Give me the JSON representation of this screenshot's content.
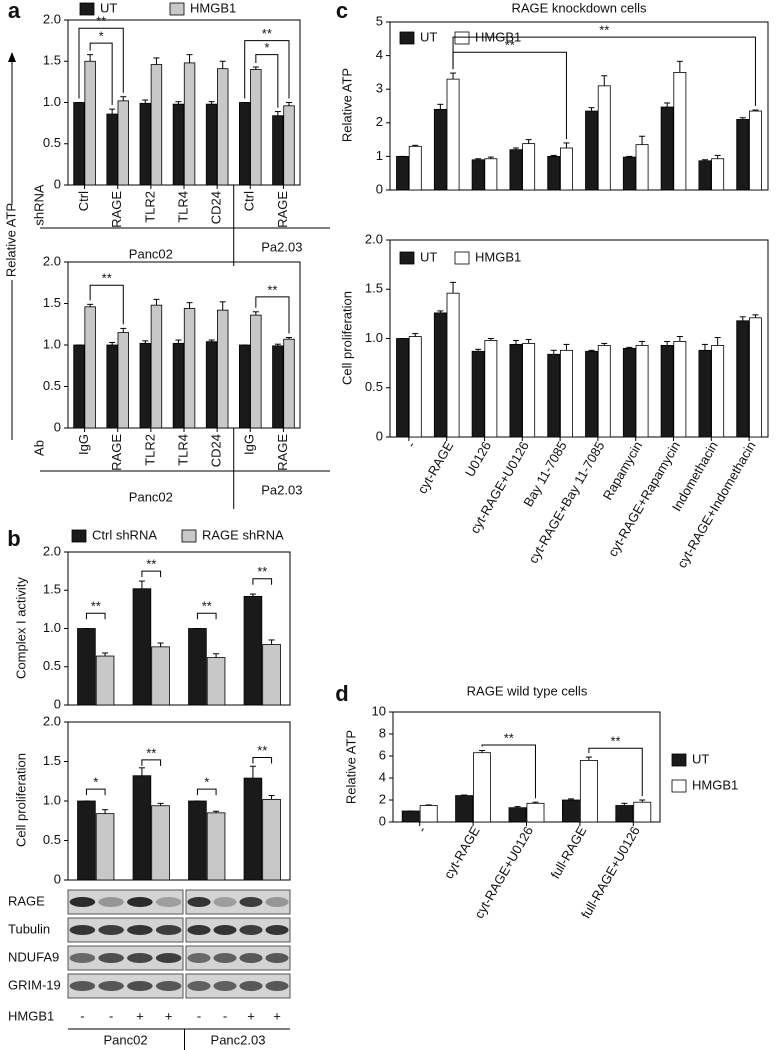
{
  "chart_data": [
    {
      "type": "bar",
      "panel": "a",
      "ylabel": "Relative ATP",
      "row_label": "shRNA",
      "groups": [
        "Panc02",
        "Pa2.03"
      ],
      "categories": [
        "Ctrl",
        "RAGE",
        "TLR2",
        "TLR4",
        "CD24",
        "Ctrl",
        "RAGE"
      ],
      "series": [
        {
          "name": "UT",
          "color": "#1a1a1a",
          "values": [
            1,
            0.86,
            0.99,
            0.98,
            0.98,
            1,
            0.84
          ],
          "errors": [
            0,
            0.06,
            0.04,
            0.03,
            0.03,
            0,
            0.05
          ]
        },
        {
          "name": "HMGB1",
          "color": "#c8c8c8",
          "values": [
            1.5,
            1.02,
            1.46,
            1.48,
            1.41,
            1.4,
            0.96
          ],
          "errors": [
            0.08,
            0.05,
            0.08,
            0.1,
            0.09,
            0.03,
            0.04
          ]
        }
      ],
      "ylim": [
        0,
        2
      ],
      "yticks": [
        0,
        0.5,
        {
          "value": 1,
          "label": "1.0"
        },
        1.5,
        {
          "value": 2,
          "label": "2.0"
        }
      ],
      "annotations": [
        "**",
        "*",
        "**",
        "*"
      ]
    },
    {
      "type": "bar",
      "row_label": "Ab",
      "groups": [
        "Panc02",
        "Pa2.03"
      ],
      "categories": [
        "IgG",
        "RAGE",
        "TLR2",
        "TLR4",
        "CD24",
        "IgG",
        "RAGE"
      ],
      "series": [
        {
          "color": "#1a1a1a",
          "values": [
            1,
            1,
            1.02,
            1.02,
            1.04,
            1,
            0.99
          ],
          "errors": [
            0,
            0.03,
            0.03,
            0.04,
            0.02,
            0,
            0.02
          ]
        },
        {
          "color": "#c8c8c8",
          "values": [
            1.46,
            1.15,
            1.48,
            1.44,
            1.42,
            1.36,
            1.07
          ],
          "errors": [
            0.03,
            0.05,
            0.07,
            0.07,
            0.1,
            0.04,
            0.02
          ]
        }
      ],
      "ylim": [
        0,
        2
      ],
      "yticks": [
        0,
        0.5,
        {
          "value": 1,
          "label": "1.0"
        },
        1.5,
        {
          "value": 2,
          "label": "2.0"
        }
      ],
      "annotations": [
        "**",
        "**"
      ]
    },
    {
      "type": "bar",
      "panel": "b",
      "ylabel": "Complex I activity",
      "series": [
        {
          "name": "Ctrl shRNA",
          "color": "#1a1a1a",
          "values": [
            1,
            1.52,
            1,
            1.42
          ],
          "errors": [
            0,
            0.1,
            0,
            0.03
          ]
        },
        {
          "name": "RAGE shRNA",
          "color": "#c8c8c8",
          "values": [
            0.64,
            0.76,
            0.62,
            0.79
          ],
          "errors": [
            0.04,
            0.05,
            0.05,
            0.06
          ]
        }
      ],
      "ylim": [
        0,
        2
      ],
      "yticks": [
        0,
        0.5,
        {
          "value": 1,
          "label": "1.0"
        },
        1.5,
        {
          "value": 2,
          "label": "2.0"
        }
      ],
      "annotations": [
        "**",
        "**",
        "**",
        "**"
      ]
    },
    {
      "type": "bar",
      "ylabel": "Cell proliferation",
      "series": [
        {
          "color": "#1a1a1a",
          "values": [
            1,
            1.32,
            1,
            1.29
          ],
          "errors": [
            0,
            0.1,
            0,
            0.15
          ]
        },
        {
          "color": "#c8c8c8",
          "values": [
            0.84,
            0.94,
            0.85,
            1.02
          ],
          "errors": [
            0.05,
            0.03,
            0.02,
            0.05
          ]
        }
      ],
      "ylim": [
        0,
        2
      ],
      "yticks": [
        0,
        0.5,
        {
          "value": 1,
          "label": "1.0"
        },
        1.5,
        {
          "value": 2,
          "label": "2.0"
        }
      ],
      "annotations": [
        "*",
        "**",
        "*",
        "**"
      ]
    },
    {
      "type": "bar",
      "panel": "c",
      "title": "RAGE knockdown cells",
      "ylabel": "Relative ATP",
      "series": [
        {
          "name": "UT",
          "color": "#1a1a1a",
          "values": [
            1,
            2.4,
            0.9,
            1.2,
            1,
            2.35,
            0.98,
            2.47,
            0.87,
            2.1
          ],
          "errors": [
            0,
            0.15,
            0.03,
            0.05,
            0.03,
            0.1,
            0.02,
            0.12,
            0.03,
            0.05
          ]
        },
        {
          "name": "HMGB1",
          "color": "#ffffff",
          "values": [
            1.3,
            3.3,
            0.93,
            1.38,
            1.25,
            3.1,
            1.35,
            3.5,
            0.93,
            2.35
          ],
          "errors": [
            0.03,
            0.18,
            0.05,
            0.12,
            0.15,
            0.3,
            0.25,
            0.33,
            0.1,
            0.03
          ]
        }
      ],
      "ylim": [
        0,
        5
      ],
      "yticks": [
        0,
        1,
        2,
        3,
        4,
        5
      ],
      "annotations": [
        "**",
        "**"
      ]
    },
    {
      "type": "bar",
      "ylabel": "Cell proliferation",
      "categories": [
        "-",
        "cyt-RAGE",
        "U0126",
        "cyt-RAGE+U0126",
        "Bay 11-7085",
        "cyt-RAGE+Bay 11-7085",
        "Rapamycin",
        "cyt-RAGE+Rapamycin",
        "Indomethacin",
        "cyt-RAGE+Indomethacin"
      ],
      "series": [
        {
          "name": "UT",
          "color": "#1a1a1a",
          "values": [
            1,
            1.26,
            0.87,
            0.94,
            0.84,
            0.87,
            0.9,
            0.93,
            0.88,
            1.18
          ],
          "errors": [
            0,
            0.02,
            0.02,
            0.04,
            0.04,
            0.01,
            0.01,
            0.04,
            0.06,
            0.04
          ]
        },
        {
          "name": "HMGB1",
          "color": "#ffffff",
          "values": [
            1.02,
            1.46,
            0.98,
            0.95,
            0.88,
            0.93,
            0.93,
            0.97,
            0.93,
            1.21
          ],
          "errors": [
            0.03,
            0.11,
            0.02,
            0.04,
            0.06,
            0.02,
            0.04,
            0.05,
            0.08,
            0.03
          ]
        }
      ],
      "ylim": [
        0,
        2
      ],
      "yticks": [
        0,
        0.5,
        {
          "value": 1,
          "label": "1.0"
        },
        1.5,
        {
          "value": 2,
          "label": "2.0"
        }
      ]
    },
    {
      "type": "bar",
      "panel": "d",
      "title": "RAGE wild type cells",
      "ylabel": "Relative ATP",
      "categories": [
        "-",
        "cyt-RAGE",
        "cyt-RAGE+U0126",
        "full-RAGE",
        "full-RAGE+U0126"
      ],
      "series": [
        {
          "name": "UT",
          "color": "#1a1a1a",
          "values": [
            1,
            2.4,
            1.3,
            2,
            1.5
          ],
          "errors": [
            0,
            0.05,
            0.1,
            0.1,
            0.2
          ]
        },
        {
          "name": "HMGB1",
          "color": "#ffffff",
          "values": [
            1.5,
            6.3,
            1.7,
            5.6,
            1.8
          ],
          "errors": [
            0.05,
            0.2,
            0.1,
            0.3,
            0.2
          ]
        }
      ],
      "ylim": [
        0,
        10
      ],
      "yticks": [
        0,
        2,
        4,
        6,
        8,
        10
      ],
      "annotations": [
        "**",
        "**"
      ]
    }
  ],
  "blot": {
    "rows": [
      "RAGE",
      "Tubulin",
      "NDUFA9",
      "GRIM-19"
    ],
    "treatment": {
      "label": "HMGB1",
      "lanes": [
        "-",
        "-",
        "+",
        "+",
        "-",
        "-",
        "+",
        "+"
      ]
    },
    "groups": [
      "Panc02",
      "Panc2.03"
    ]
  }
}
